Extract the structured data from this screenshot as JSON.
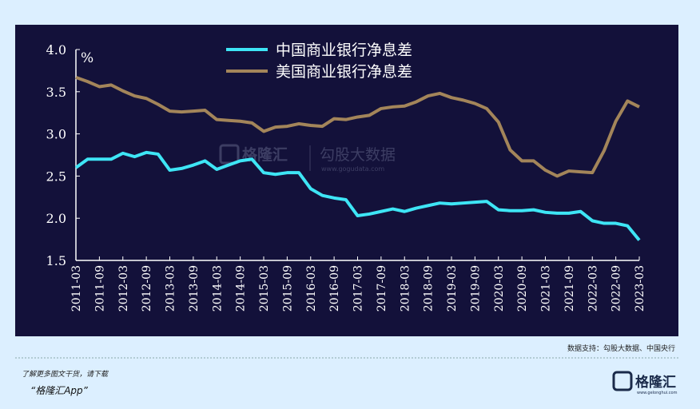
{
  "chart_data": {
    "type": "line",
    "unit": "%",
    "categories": [
      "2011-03",
      null,
      "2011-09",
      null,
      "2012-03",
      null,
      "2012-09",
      null,
      "2013-03",
      null,
      "2013-09",
      null,
      "2014-03",
      null,
      "2014-09",
      null,
      "2015-03",
      null,
      "2015-09",
      null,
      "2016-03",
      null,
      "2016-09",
      null,
      "2017-03",
      null,
      "2017-09",
      null,
      "2018-03",
      null,
      "2018-09",
      null,
      "2019-03",
      null,
      "2019-09",
      null,
      "2020-03",
      null,
      "2020-09",
      null,
      "2021-03",
      null,
      "2021-09",
      null,
      "2022-03",
      null,
      "2022-09",
      null,
      "2023-03"
    ],
    "series": [
      {
        "name": "中国商业银行净息差",
        "color": "#3ee5f5",
        "values": [
          2.6,
          2.7,
          2.7,
          2.7,
          2.77,
          2.73,
          2.78,
          2.76,
          2.57,
          2.59,
          2.63,
          2.68,
          2.58,
          2.63,
          2.68,
          2.7,
          2.54,
          2.52,
          2.54,
          2.54,
          2.35,
          2.27,
          2.24,
          2.22,
          2.03,
          2.05,
          2.08,
          2.11,
          2.08,
          2.12,
          2.15,
          2.18,
          2.17,
          2.18,
          2.19,
          2.2,
          2.1,
          2.09,
          2.09,
          2.1,
          2.07,
          2.06,
          2.06,
          2.08,
          1.97,
          1.94,
          1.94,
          1.91,
          1.74
        ]
      },
      {
        "name": "美国商业银行净息差",
        "color": "#a3855a",
        "values": [
          3.67,
          3.62,
          3.56,
          3.58,
          3.51,
          3.45,
          3.42,
          3.35,
          3.27,
          3.26,
          3.27,
          3.28,
          3.17,
          3.16,
          3.15,
          3.13,
          3.03,
          3.08,
          3.09,
          3.12,
          3.1,
          3.09,
          3.18,
          3.17,
          3.2,
          3.22,
          3.3,
          3.32,
          3.33,
          3.38,
          3.45,
          3.48,
          3.43,
          3.4,
          3.36,
          3.3,
          3.14,
          2.81,
          2.68,
          2.68,
          2.57,
          2.5,
          2.56,
          2.55,
          2.54,
          2.8,
          3.15,
          3.39,
          3.32
        ]
      }
    ],
    "ylim": [
      1.5,
      4.0
    ],
    "yticks": [
      1.5,
      {
        "value": 2,
        "label": "2.0"
      },
      2.5,
      {
        "value": 3,
        "label": "3.0"
      },
      3.5,
      {
        "value": 4,
        "label": "4.0"
      }
    ],
    "grid": false,
    "legend": "top",
    "source": "数据支持：勾股大数据、中国央行"
  },
  "watermark": {
    "brand": "格隆汇",
    "provider": "勾股大数据",
    "url": "www.gogudata.com"
  },
  "footer": {
    "prompt": "了解更多图文干货，请下载",
    "app": "“格隆汇App”",
    "logo": "格隆汇",
    "logo_url": "www.gelonghui.com"
  }
}
